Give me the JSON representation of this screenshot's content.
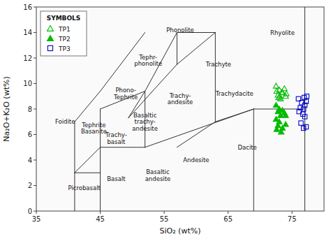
{
  "chart_data": {
    "type": "scatter",
    "xlabel": "SiO₂ (wt%)",
    "ylabel": "Na₂O+K₂O (wt%)",
    "xlim": [
      35,
      80
    ],
    "ylim": [
      0,
      16
    ],
    "xticks": [
      35,
      45,
      55,
      65,
      75
    ],
    "yticks": [
      0,
      2,
      4,
      6,
      8,
      10,
      12,
      14,
      16
    ],
    "grid": false,
    "legend": "upper-left",
    "legend_title": "SYMBOLS",
    "series": [
      {
        "name": "TP1",
        "color": "#00bb00",
        "marker": "triangle-open",
        "x": [
          72.5,
          73.0,
          73.5,
          72.8,
          74.0,
          73.2,
          72.6,
          73.8,
          74.1,
          73.1,
          72.9,
          73.4
        ],
        "values": [
          9.8,
          9.5,
          9.3,
          9.1,
          9.0,
          8.8,
          9.4,
          9.6,
          9.2,
          9.0,
          8.9,
          9.3
        ]
      },
      {
        "name": "TP2",
        "color": "#00bb00",
        "marker": "triangle",
        "x": [
          72.5,
          73.0,
          72.8,
          73.5,
          73.2,
          73.8,
          72.5,
          74.0,
          73.0,
          72.8,
          73.5,
          74.0,
          72.6,
          73.3
        ],
        "values": [
          8.3,
          8.0,
          7.8,
          7.9,
          7.5,
          7.7,
          7.2,
          7.5,
          7.0,
          6.7,
          6.5,
          6.8,
          6.4,
          6.2
        ]
      },
      {
        "name": "TP3",
        "color": "#0000cc",
        "marker": "square-open",
        "x": [
          76.0,
          76.5,
          77.0,
          76.3,
          76.8,
          77.2,
          76.1,
          76.7,
          77.3,
          76.9,
          77.0,
          76.4,
          77.2,
          76.8
        ],
        "values": [
          8.8,
          8.5,
          8.3,
          8.1,
          8.0,
          8.6,
          7.8,
          7.6,
          9.0,
          8.9,
          7.4,
          6.9,
          6.6,
          6.5
        ]
      }
    ],
    "boundaries": [
      [
        [
          41,
          0
        ],
        [
          41,
          3
        ]
      ],
      [
        [
          41,
          3
        ],
        [
          45,
          3
        ]
      ],
      [
        [
          45,
          0
        ],
        [
          45,
          5
        ]
      ],
      [
        [
          41,
          3
        ],
        [
          45,
          5
        ]
      ],
      [
        [
          45,
          5
        ],
        [
          52,
          5
        ]
      ],
      [
        [
          52,
          5
        ],
        [
          69,
          8
        ]
      ],
      [
        [
          69,
          8
        ],
        [
          77,
          8
        ]
      ],
      [
        [
          41,
          3
        ],
        [
          41,
          7
        ]
      ],
      [
        [
          41,
          7
        ],
        [
          45,
          9.4
        ]
      ],
      [
        [
          45,
          9.4
        ],
        [
          52,
          14
        ]
      ],
      [
        [
          52,
          5
        ],
        [
          52,
          9.4
        ]
      ],
      [
        [
          52,
          9.4
        ],
        [
          57,
          14
        ]
      ],
      [
        [
          57,
          14
        ],
        [
          63,
          14
        ]
      ],
      [
        [
          45,
          5
        ],
        [
          45,
          8
        ]
      ],
      [
        [
          45,
          8
        ],
        [
          52,
          9.4
        ]
      ],
      [
        [
          52,
          9.4
        ],
        [
          49.4,
          7.3
        ]
      ],
      [
        [
          49.4,
          7.3
        ],
        [
          53,
          9.3
        ]
      ],
      [
        [
          53,
          9.3
        ],
        [
          57,
          11.5
        ]
      ],
      [
        [
          57,
          11.5
        ],
        [
          57,
          14
        ]
      ],
      [
        [
          57,
          11.5
        ],
        [
          63,
          14
        ]
      ],
      [
        [
          57,
          5
        ],
        [
          63,
          7
        ]
      ],
      [
        [
          63,
          7
        ],
        [
          63,
          14
        ]
      ],
      [
        [
          63,
          7
        ],
        [
          69,
          8
        ]
      ],
      [
        [
          69,
          0
        ],
        [
          69,
          8
        ]
      ],
      [
        [
          77,
          0
        ],
        [
          77,
          16
        ]
      ]
    ],
    "annotations": [
      {
        "text": "Foidite",
        "x": 39.5,
        "y": 7.0
      },
      {
        "text": "Picrobasalt",
        "x": 42.5,
        "y": 1.8
      },
      {
        "text": "Basalt",
        "x": 47.5,
        "y": 2.5
      },
      {
        "text": "Tephrite\nBasanite",
        "x": 44.0,
        "y": 6.5
      },
      {
        "text": "Phono-\nTephrite",
        "x": 49.0,
        "y": 9.2
      },
      {
        "text": "Tephr-\nphonolite",
        "x": 52.5,
        "y": 11.8
      },
      {
        "text": "Phonolite",
        "x": 57.5,
        "y": 14.2
      },
      {
        "text": "Trachy-\nbasalt",
        "x": 47.5,
        "y": 5.7
      },
      {
        "text": "Basaltic\ntrachy-\nandesite",
        "x": 52.0,
        "y": 7.0
      },
      {
        "text": "Trachy-\nandesite",
        "x": 57.5,
        "y": 8.8
      },
      {
        "text": "Trachyte",
        "x": 63.5,
        "y": 11.5
      },
      {
        "text": "Trachydacite",
        "x": 66.0,
        "y": 9.2
      },
      {
        "text": "Rhyolite",
        "x": 73.5,
        "y": 14.0
      },
      {
        "text": "Andesite",
        "x": 60.0,
        "y": 4.0
      },
      {
        "text": "Basaltic\nandesite",
        "x": 54.0,
        "y": 2.8
      },
      {
        "text": "Dacite",
        "x": 68.0,
        "y": 5.0
      }
    ]
  }
}
